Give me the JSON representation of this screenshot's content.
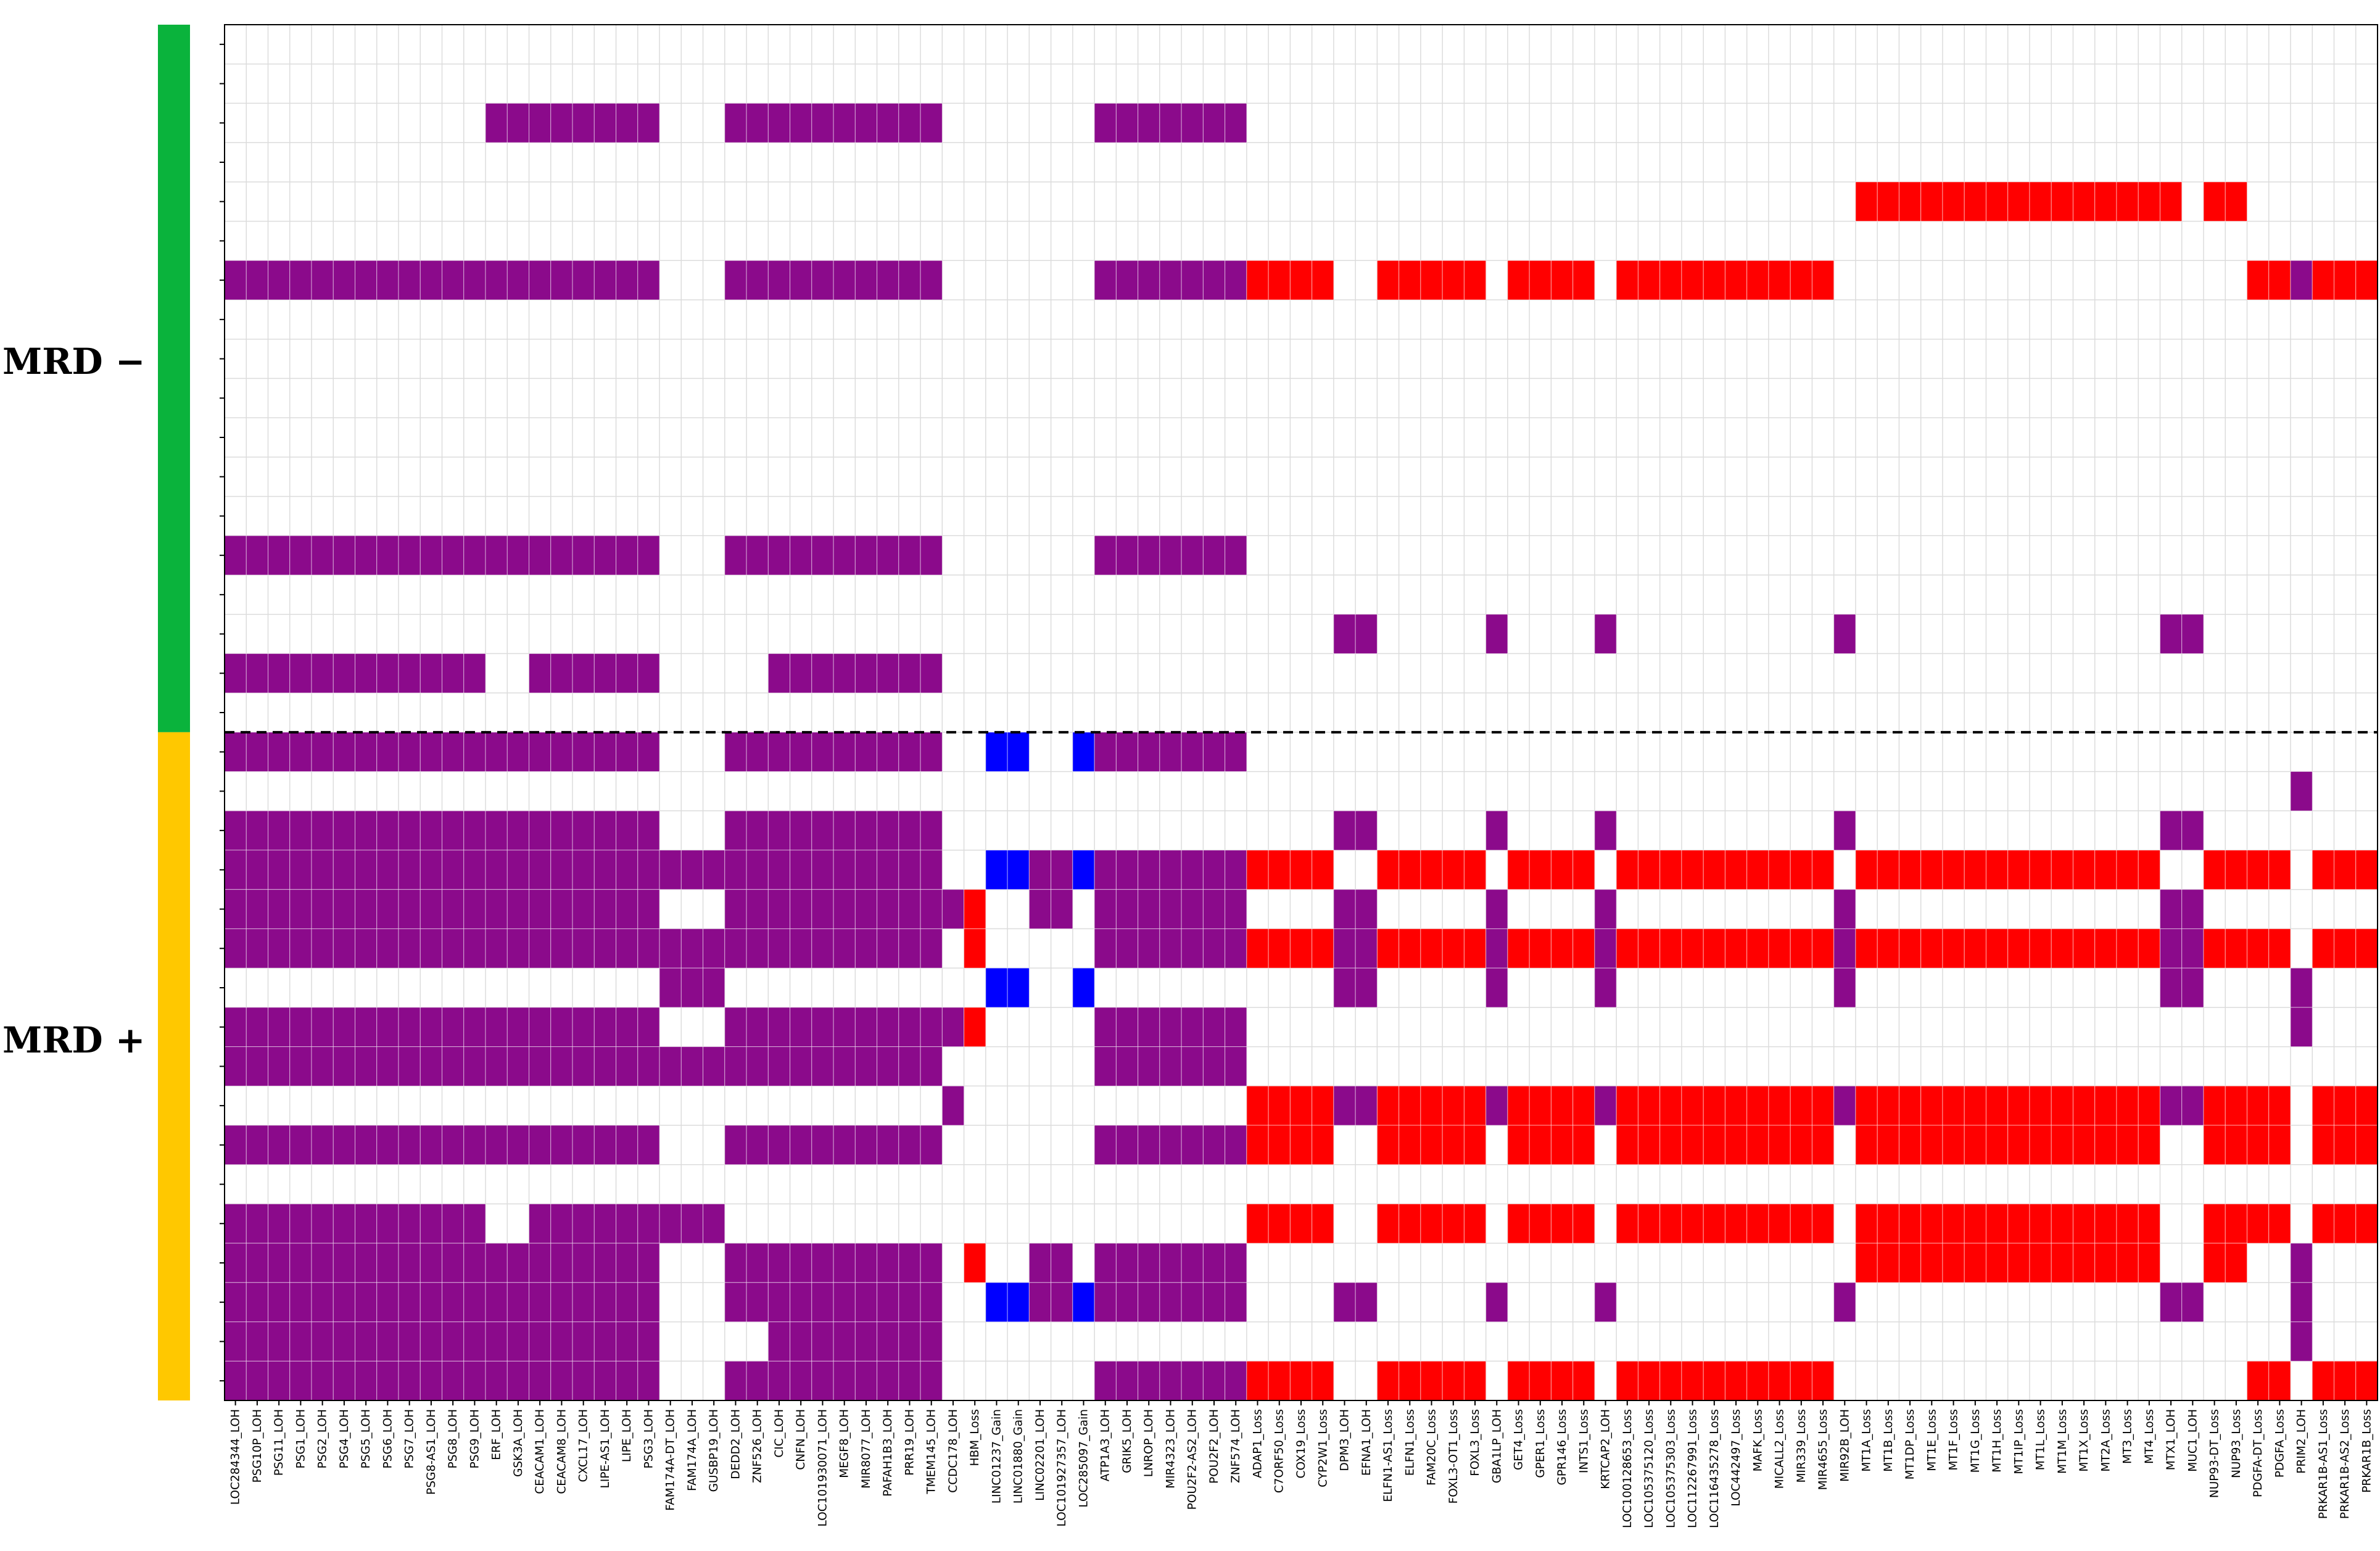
{
  "chart_data": {
    "type": "heatmap",
    "title": "",
    "xlabel": "",
    "ylabel": "",
    "colors": {
      "LOH": "#8b0a8b",
      "Loss": "#ff0000",
      "Gain": "#0000ff",
      "none": "#ffffff",
      "grid": "#dcdcdc",
      "mrd_negative": "#0ab33c",
      "mrd_positive": "#ffc800"
    },
    "groups": [
      {
        "label": "MRD −",
        "rows": [
          0,
          17
        ]
      },
      {
        "label": "MRD +",
        "rows": [
          18,
          34
        ]
      }
    ],
    "columns": [
      "LOC284344_LOH",
      "PSG10P_LOH",
      "PSG11_LOH",
      "PSG1_LOH",
      "PSG2_LOH",
      "PSG4_LOH",
      "PSG5_LOH",
      "PSG6_LOH",
      "PSG7_LOH",
      "PSG8-AS1_LOH",
      "PSG8_LOH",
      "PSG9_LOH",
      "ERF_LOH",
      "GSK3A_LOH",
      "CEACAM1_LOH",
      "CEACAM8_LOH",
      "CXCL17_LOH",
      "LIPE-AS1_LOH",
      "LIPE_LOH",
      "PSG3_LOH",
      "FAM174A-DT_LOH",
      "FAM174A_LOH",
      "GUSBP19_LOH",
      "DEDD2_LOH",
      "ZNF526_LOH",
      "CIC_LOH",
      "CNFN_LOH",
      "LOC101930071_LOH",
      "MEGF8_LOH",
      "MIR8077_LOH",
      "PAFAH1B3_LOH",
      "PRR19_LOH",
      "TMEM145_LOH",
      "CCDC178_LOH",
      "HBM_Loss",
      "LINC01237_Gain",
      "LINC01880_Gain",
      "LINC02201_LOH",
      "LOC101927357_LOH",
      "LOC285097_Gain",
      "ATP1A3_LOH",
      "GRIK5_LOH",
      "LNROP_LOH",
      "MIR4323_LOH",
      "POU2F2-AS2_LOH",
      "POU2F2_LOH",
      "ZNF574_LOH",
      "ADAP1_Loss",
      "C7ORF50_Loss",
      "COX19_Loss",
      "CYP2W1_Loss",
      "DPM3_LOH",
      "EFNA1_LOH",
      "ELFN1-AS1_Loss",
      "ELFN1_Loss",
      "FAM20C_Loss",
      "FOXL3-OT1_Loss",
      "FOXL3_Loss",
      "GBA1LP_LOH",
      "GET4_Loss",
      "GPER1_Loss",
      "GPR146_Loss",
      "INTS1_Loss",
      "KRTCAP2_LOH",
      "LOC100128653_Loss",
      "LOC105375120_Loss",
      "LOC105375303_Loss",
      "LOC112267991_Loss",
      "LOC116435278_Loss",
      "LOC442497_Loss",
      "MAFK_Loss",
      "MICALL2_Loss",
      "MIR339_Loss",
      "MIR4655_Loss",
      "MIR92B_LOH",
      "MT1A_Loss",
      "MT1B_Loss",
      "MT1DP_Loss",
      "MT1E_Loss",
      "MT1F_Loss",
      "MT1G_Loss",
      "MT1H_Loss",
      "MT1IP_Loss",
      "MT1L_Loss",
      "MT1M_Loss",
      "MT1X_Loss",
      "MT2A_Loss",
      "MT3_Loss",
      "MT4_Loss",
      "MTX1_LOH",
      "MUC1_LOH",
      "NUP93-DT_Loss",
      "NUP93_Loss",
      "PDGFA-DT_Loss",
      "PDGFA_Loss",
      "PRIM2_LOH",
      "PRKAR1B-AS1_Loss",
      "PRKAR1B-AS2_Loss",
      "PRKAR1B_Loss"
    ],
    "rows": [
      {
        "segments": []
      },
      {
        "segments": []
      },
      {
        "segments": [
          [
            "LOH",
            12,
            19
          ],
          [
            "LOH",
            23,
            32
          ],
          [
            "LOH",
            40,
            46
          ]
        ]
      },
      {
        "segments": []
      },
      {
        "segments": [
          [
            "Loss",
            75,
            89
          ],
          [
            "Loss",
            91,
            92
          ]
        ]
      },
      {
        "segments": []
      },
      {
        "segments": [
          [
            "LOH",
            0,
            19
          ],
          [
            "LOH",
            23,
            32
          ],
          [
            "LOH",
            40,
            46
          ],
          [
            "Loss",
            47,
            50
          ],
          [
            "Loss",
            53,
            57
          ],
          [
            "Loss",
            59,
            62
          ],
          [
            "Loss",
            64,
            73
          ],
          [
            "Loss",
            93,
            94
          ],
          [
            "LOH",
            95,
            95
          ],
          [
            "Loss",
            96,
            98
          ]
        ]
      },
      {
        "segments": []
      },
      {
        "segments": []
      },
      {
        "segments": []
      },
      {
        "segments": []
      },
      {
        "segments": []
      },
      {
        "segments": []
      },
      {
        "segments": [
          [
            "LOH",
            0,
            19
          ],
          [
            "LOH",
            23,
            32
          ],
          [
            "LOH",
            40,
            46
          ]
        ]
      },
      {
        "segments": []
      },
      {
        "segments": [
          [
            "LOH",
            51,
            52
          ],
          [
            "LOH",
            58,
            58
          ],
          [
            "LOH",
            63,
            63
          ],
          [
            "LOH",
            74,
            74
          ],
          [
            "LOH",
            89,
            90
          ]
        ]
      },
      {
        "segments": [
          [
            "LOH",
            0,
            11
          ],
          [
            "LOH",
            14,
            19
          ],
          [
            "LOH",
            25,
            32
          ]
        ]
      },
      {
        "segments": []
      },
      {
        "segments": [
          [
            "LOH",
            0,
            19
          ],
          [
            "LOH",
            23,
            32
          ],
          [
            "Gain",
            35,
            36
          ],
          [
            "Gain",
            39,
            39
          ],
          [
            "LOH",
            40,
            46
          ]
        ]
      },
      {
        "segments": [
          [
            "LOH",
            95,
            95
          ]
        ]
      },
      {
        "segments": [
          [
            "LOH",
            0,
            19
          ],
          [
            "LOH",
            23,
            32
          ],
          [
            "LOH",
            51,
            52
          ],
          [
            "LOH",
            58,
            58
          ],
          [
            "LOH",
            63,
            63
          ],
          [
            "LOH",
            74,
            74
          ],
          [
            "LOH",
            89,
            90
          ]
        ]
      },
      {
        "segments": [
          [
            "LOH",
            0,
            32
          ],
          [
            "Gain",
            35,
            36
          ],
          [
            "LOH",
            37,
            38
          ],
          [
            "Gain",
            39,
            39
          ],
          [
            "LOH",
            40,
            46
          ],
          [
            "Loss",
            47,
            50
          ],
          [
            "Loss",
            53,
            57
          ],
          [
            "Loss",
            59,
            62
          ],
          [
            "Loss",
            64,
            73
          ],
          [
            "Loss",
            75,
            88
          ],
          [
            "Loss",
            91,
            94
          ],
          [
            "Loss",
            96,
            98
          ]
        ]
      },
      {
        "segments": [
          [
            "LOH",
            0,
            19
          ],
          [
            "LOH",
            23,
            33
          ],
          [
            "Loss",
            34,
            34
          ],
          [
            "LOH",
            37,
            38
          ],
          [
            "LOH",
            40,
            46
          ],
          [
            "LOH",
            51,
            52
          ],
          [
            "LOH",
            58,
            58
          ],
          [
            "LOH",
            63,
            63
          ],
          [
            "LOH",
            74,
            74
          ],
          [
            "LOH",
            89,
            90
          ]
        ]
      },
      {
        "segments": [
          [
            "LOH",
            0,
            32
          ],
          [
            "Loss",
            34,
            34
          ],
          [
            "LOH",
            40,
            46
          ],
          [
            "Loss",
            47,
            50
          ],
          [
            "LOH",
            51,
            52
          ],
          [
            "Loss",
            53,
            57
          ],
          [
            "LOH",
            58,
            58
          ],
          [
            "Loss",
            59,
            62
          ],
          [
            "LOH",
            63,
            63
          ],
          [
            "Loss",
            64,
            73
          ],
          [
            "LOH",
            74,
            74
          ],
          [
            "Loss",
            75,
            88
          ],
          [
            "LOH",
            89,
            90
          ],
          [
            "Loss",
            91,
            94
          ],
          [
            "Loss",
            96,
            98
          ]
        ]
      },
      {
        "segments": [
          [
            "LOH",
            20,
            22
          ],
          [
            "Gain",
            35,
            36
          ],
          [
            "Gain",
            39,
            39
          ],
          [
            "LOH",
            51,
            52
          ],
          [
            "LOH",
            58,
            58
          ],
          [
            "LOH",
            63,
            63
          ],
          [
            "LOH",
            74,
            74
          ],
          [
            "LOH",
            89,
            90
          ],
          [
            "LOH",
            95,
            95
          ]
        ]
      },
      {
        "segments": [
          [
            "LOH",
            0,
            19
          ],
          [
            "LOH",
            23,
            33
          ],
          [
            "Loss",
            34,
            34
          ],
          [
            "LOH",
            40,
            46
          ],
          [
            "LOH",
            95,
            95
          ]
        ]
      },
      {
        "segments": [
          [
            "LOH",
            0,
            32
          ],
          [
            "LOH",
            40,
            46
          ]
        ]
      },
      {
        "segments": [
          [
            "LOH",
            33,
            33
          ],
          [
            "Loss",
            47,
            50
          ],
          [
            "LOH",
            51,
            52
          ],
          [
            "Loss",
            53,
            57
          ],
          [
            "LOH",
            58,
            58
          ],
          [
            "Loss",
            59,
            62
          ],
          [
            "LOH",
            63,
            63
          ],
          [
            "Loss",
            64,
            73
          ],
          [
            "LOH",
            74,
            74
          ],
          [
            "Loss",
            75,
            88
          ],
          [
            "LOH",
            89,
            90
          ],
          [
            "Loss",
            91,
            94
          ],
          [
            "Loss",
            96,
            98
          ]
        ]
      },
      {
        "segments": [
          [
            "LOH",
            0,
            19
          ],
          [
            "LOH",
            23,
            32
          ],
          [
            "LOH",
            40,
            46
          ],
          [
            "Loss",
            47,
            50
          ],
          [
            "Loss",
            53,
            57
          ],
          [
            "Loss",
            59,
            62
          ],
          [
            "Loss",
            64,
            73
          ],
          [
            "Loss",
            75,
            88
          ],
          [
            "Loss",
            91,
            94
          ],
          [
            "Loss",
            96,
            98
          ]
        ]
      },
      {
        "segments": []
      },
      {
        "segments": [
          [
            "LOH",
            0,
            11
          ],
          [
            "LOH",
            14,
            22
          ],
          [
            "Loss",
            47,
            50
          ],
          [
            "Loss",
            53,
            57
          ],
          [
            "Loss",
            59,
            62
          ],
          [
            "Loss",
            64,
            73
          ],
          [
            "Loss",
            75,
            88
          ],
          [
            "Loss",
            91,
            94
          ],
          [
            "Loss",
            96,
            98
          ]
        ]
      },
      {
        "segments": [
          [
            "LOH",
            0,
            19
          ],
          [
            "LOH",
            23,
            32
          ],
          [
            "Loss",
            34,
            34
          ],
          [
            "LOH",
            37,
            38
          ],
          [
            "LOH",
            40,
            46
          ],
          [
            "Loss",
            75,
            88
          ],
          [
            "Loss",
            91,
            92
          ],
          [
            "LOH",
            95,
            95
          ]
        ]
      },
      {
        "segments": [
          [
            "LOH",
            0,
            19
          ],
          [
            "LOH",
            23,
            32
          ],
          [
            "Gain",
            35,
            36
          ],
          [
            "LOH",
            37,
            38
          ],
          [
            "Gain",
            39,
            39
          ],
          [
            "LOH",
            40,
            46
          ],
          [
            "LOH",
            51,
            52
          ],
          [
            "LOH",
            58,
            58
          ],
          [
            "LOH",
            63,
            63
          ],
          [
            "LOH",
            74,
            74
          ],
          [
            "LOH",
            89,
            90
          ],
          [
            "LOH",
            95,
            95
          ]
        ]
      },
      {
        "segments": [
          [
            "LOH",
            0,
            19
          ],
          [
            "LOH",
            25,
            32
          ],
          [
            "LOH",
            95,
            95
          ]
        ]
      },
      {
        "segments": [
          [
            "LOH",
            0,
            19
          ],
          [
            "LOH",
            23,
            32
          ],
          [
            "LOH",
            40,
            46
          ],
          [
            "Loss",
            47,
            50
          ],
          [
            "Loss",
            53,
            57
          ],
          [
            "Loss",
            59,
            62
          ],
          [
            "Loss",
            64,
            73
          ],
          [
            "Loss",
            93,
            94
          ],
          [
            "Loss",
            96,
            98
          ]
        ]
      }
    ]
  }
}
